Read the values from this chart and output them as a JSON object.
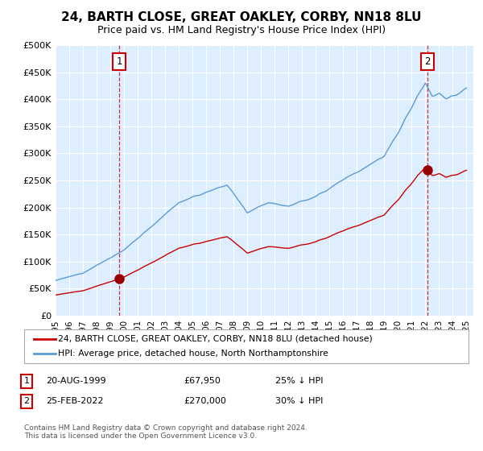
{
  "title": "24, BARTH CLOSE, GREAT OAKLEY, CORBY, NN18 8LU",
  "subtitle": "Price paid vs. HM Land Registry's House Price Index (HPI)",
  "legend_line1": "24, BARTH CLOSE, GREAT OAKLEY, CORBY, NN18 8LU (detached house)",
  "legend_line2": "HPI: Average price, detached house, North Northamptonshire",
  "point1_date": "20-AUG-1999",
  "point1_price": "£67,950",
  "point1_hpi": "25% ↓ HPI",
  "point1_year": 1999.64,
  "point1_value": 67950,
  "point2_date": "25-FEB-2022",
  "point2_price": "£270,000",
  "point2_hpi": "30% ↓ HPI",
  "point2_year": 2022.15,
  "point2_value": 270000,
  "hpi_color": "#5b9bd5",
  "price_color": "#cc0000",
  "marker_color": "#990000",
  "bg_fill_color": "#ddeeff",
  "footnote": "Contains HM Land Registry data © Crown copyright and database right 2024.\nThis data is licensed under the Open Government Licence v3.0.",
  "ylim": [
    0,
    500000
  ],
  "yticks": [
    0,
    50000,
    100000,
    150000,
    200000,
    250000,
    300000,
    350000,
    400000,
    450000,
    500000
  ]
}
